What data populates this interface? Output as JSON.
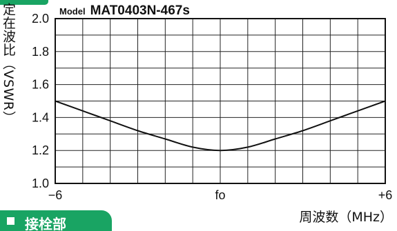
{
  "section": {
    "label": "接栓部"
  },
  "header": {
    "model_label": "Model",
    "model_name": "MAT0403N-467s"
  },
  "colors": {
    "accent": "#19a463",
    "line": "#111111",
    "grid": "#222222"
  },
  "chart_data": {
    "type": "line",
    "title": "",
    "xlabel": "周波数（MHz）",
    "ylabel": "定在波比（VSWR）",
    "x_ticks": [
      "−6",
      "fo",
      "+6"
    ],
    "x_tick_values": [
      -6,
      0,
      6
    ],
    "xlim": [
      -6,
      6
    ],
    "ylim": [
      1.0,
      2.0
    ],
    "y_ticks": [
      "1.0",
      "1.2",
      "1.4",
      "1.6",
      "1.8",
      "2.0"
    ],
    "y_tick_values": [
      1.0,
      1.2,
      1.4,
      1.6,
      1.8,
      2.0
    ],
    "grid": true,
    "legend": "none",
    "series": [
      {
        "x": [
          -6,
          -5,
          -4,
          -3,
          -2,
          -1,
          0,
          1,
          2,
          3,
          4,
          5,
          6
        ],
        "y": [
          1.5,
          1.44,
          1.38,
          1.32,
          1.27,
          1.22,
          1.2,
          1.22,
          1.27,
          1.32,
          1.38,
          1.44,
          1.5
        ]
      }
    ]
  }
}
